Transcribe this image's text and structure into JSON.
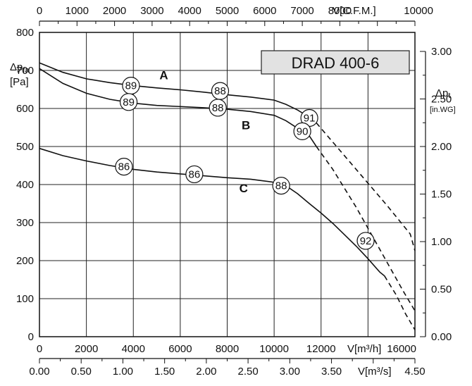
{
  "chart_data": {
    "type": "line",
    "title": "DRAD 400-6",
    "x_bottom": {
      "label": "V[m³/h]",
      "min": 0,
      "max": 16000,
      "ticks": [
        "0",
        "2000",
        "4000",
        "6000",
        "8000",
        "10000",
        "12000",
        "16000"
      ]
    },
    "x_bottom2": {
      "label": "V[m³/s]",
      "min": 0,
      "max": 4.5,
      "ticks": [
        "0.00",
        "0.50",
        "1.00",
        "1.50",
        "2.00",
        "2.50",
        "3.00",
        "3.50",
        "4.50"
      ]
    },
    "x_top": {
      "label": "V[C.F.M.]",
      "min": 0,
      "max": 10000,
      "ticks": [
        "0",
        "1000",
        "2000",
        "3000",
        "4000",
        "5000",
        "6000",
        "7000",
        "8000",
        "10000"
      ]
    },
    "y_left": {
      "label_line1": "Δp",
      "label_sub": "fa",
      "label_line2": "[Pa]",
      "min": 0,
      "max": 800,
      "ticks": [
        "0",
        "100",
        "200",
        "300",
        "400",
        "500",
        "600",
        "700",
        "800"
      ]
    },
    "y_right": {
      "label_line1": "Δp",
      "label_sub": "t",
      "label_line2": "[in.WG]",
      "min": 0,
      "max": 3.2,
      "ticks": [
        "0.00",
        "0.50",
        "1.00",
        "1.50",
        "2.00",
        "2.50",
        "3.00"
      ]
    },
    "grid": true,
    "series": [
      {
        "name": "A",
        "solid": [
          [
            0,
            720
          ],
          [
            1000,
            695
          ],
          [
            2000,
            678
          ],
          [
            3000,
            668
          ],
          [
            4000,
            660
          ],
          [
            5000,
            654
          ],
          [
            6000,
            649
          ],
          [
            7000,
            643
          ],
          [
            8000,
            636
          ],
          [
            9000,
            630
          ],
          [
            10000,
            622
          ],
          [
            10500,
            611
          ],
          [
            11000,
            596
          ],
          [
            11500,
            577
          ],
          [
            11800,
            562
          ]
        ],
        "dashed": [
          [
            11800,
            562
          ],
          [
            12800,
            490
          ],
          [
            13800,
            418
          ],
          [
            14800,
            346
          ],
          [
            15800,
            270
          ],
          [
            16000,
            226
          ]
        ]
      },
      {
        "name": "B",
        "solid": [
          [
            0,
            705
          ],
          [
            1000,
            666
          ],
          [
            2000,
            640
          ],
          [
            3000,
            624
          ],
          [
            4000,
            614
          ],
          [
            5000,
            608
          ],
          [
            6000,
            605
          ],
          [
            7000,
            602
          ],
          [
            8000,
            598
          ],
          [
            9000,
            592
          ],
          [
            10000,
            582
          ],
          [
            10500,
            568
          ],
          [
            11000,
            548
          ],
          [
            11500,
            528
          ],
          [
            11800,
            500
          ]
        ],
        "dashed": [
          [
            11800,
            500
          ],
          [
            12500,
            440
          ],
          [
            13500,
            340
          ],
          [
            14500,
            230
          ],
          [
            15500,
            120
          ],
          [
            16000,
            68
          ]
        ]
      },
      {
        "name": "C",
        "solid": [
          [
            0,
            495
          ],
          [
            1000,
            476
          ],
          [
            2000,
            462
          ],
          [
            3000,
            450
          ],
          [
            4000,
            440
          ],
          [
            5000,
            433
          ],
          [
            6000,
            428
          ],
          [
            7000,
            423
          ],
          [
            8000,
            418
          ],
          [
            9000,
            414
          ],
          [
            10000,
            406
          ],
          [
            10500,
            397
          ],
          [
            11000,
            376
          ],
          [
            11500,
            350
          ],
          [
            12000,
            325
          ],
          [
            12500,
            298
          ],
          [
            13000,
            268
          ],
          [
            13500,
            238
          ],
          [
            14000,
            205
          ],
          [
            14500,
            170
          ],
          [
            14700,
            160
          ]
        ],
        "dashed": [
          [
            14700,
            160
          ],
          [
            15200,
            110
          ],
          [
            15600,
            60
          ],
          [
            16000,
            18
          ]
        ]
      }
    ],
    "curve_labels": [
      {
        "text": "A",
        "x": 5300,
        "y": 677
      },
      {
        "text": "B",
        "x": 8800,
        "y": 545
      },
      {
        "text": "C",
        "x": 8700,
        "y": 380
      }
    ],
    "efficiency_markers": [
      {
        "text": "89",
        "x": 3900,
        "y": 660
      },
      {
        "text": "88",
        "x": 7700,
        "y": 646
      },
      {
        "text": "89",
        "x": 3800,
        "y": 617
      },
      {
        "text": "88",
        "x": 7600,
        "y": 602
      },
      {
        "text": "91",
        "x": 11500,
        "y": 575
      },
      {
        "text": "90",
        "x": 11200,
        "y": 540
      },
      {
        "text": "86",
        "x": 3600,
        "y": 447
      },
      {
        "text": "86",
        "x": 6600,
        "y": 427
      },
      {
        "text": "88",
        "x": 10300,
        "y": 397
      },
      {
        "text": "92",
        "x": 13900,
        "y": 252
      }
    ]
  }
}
